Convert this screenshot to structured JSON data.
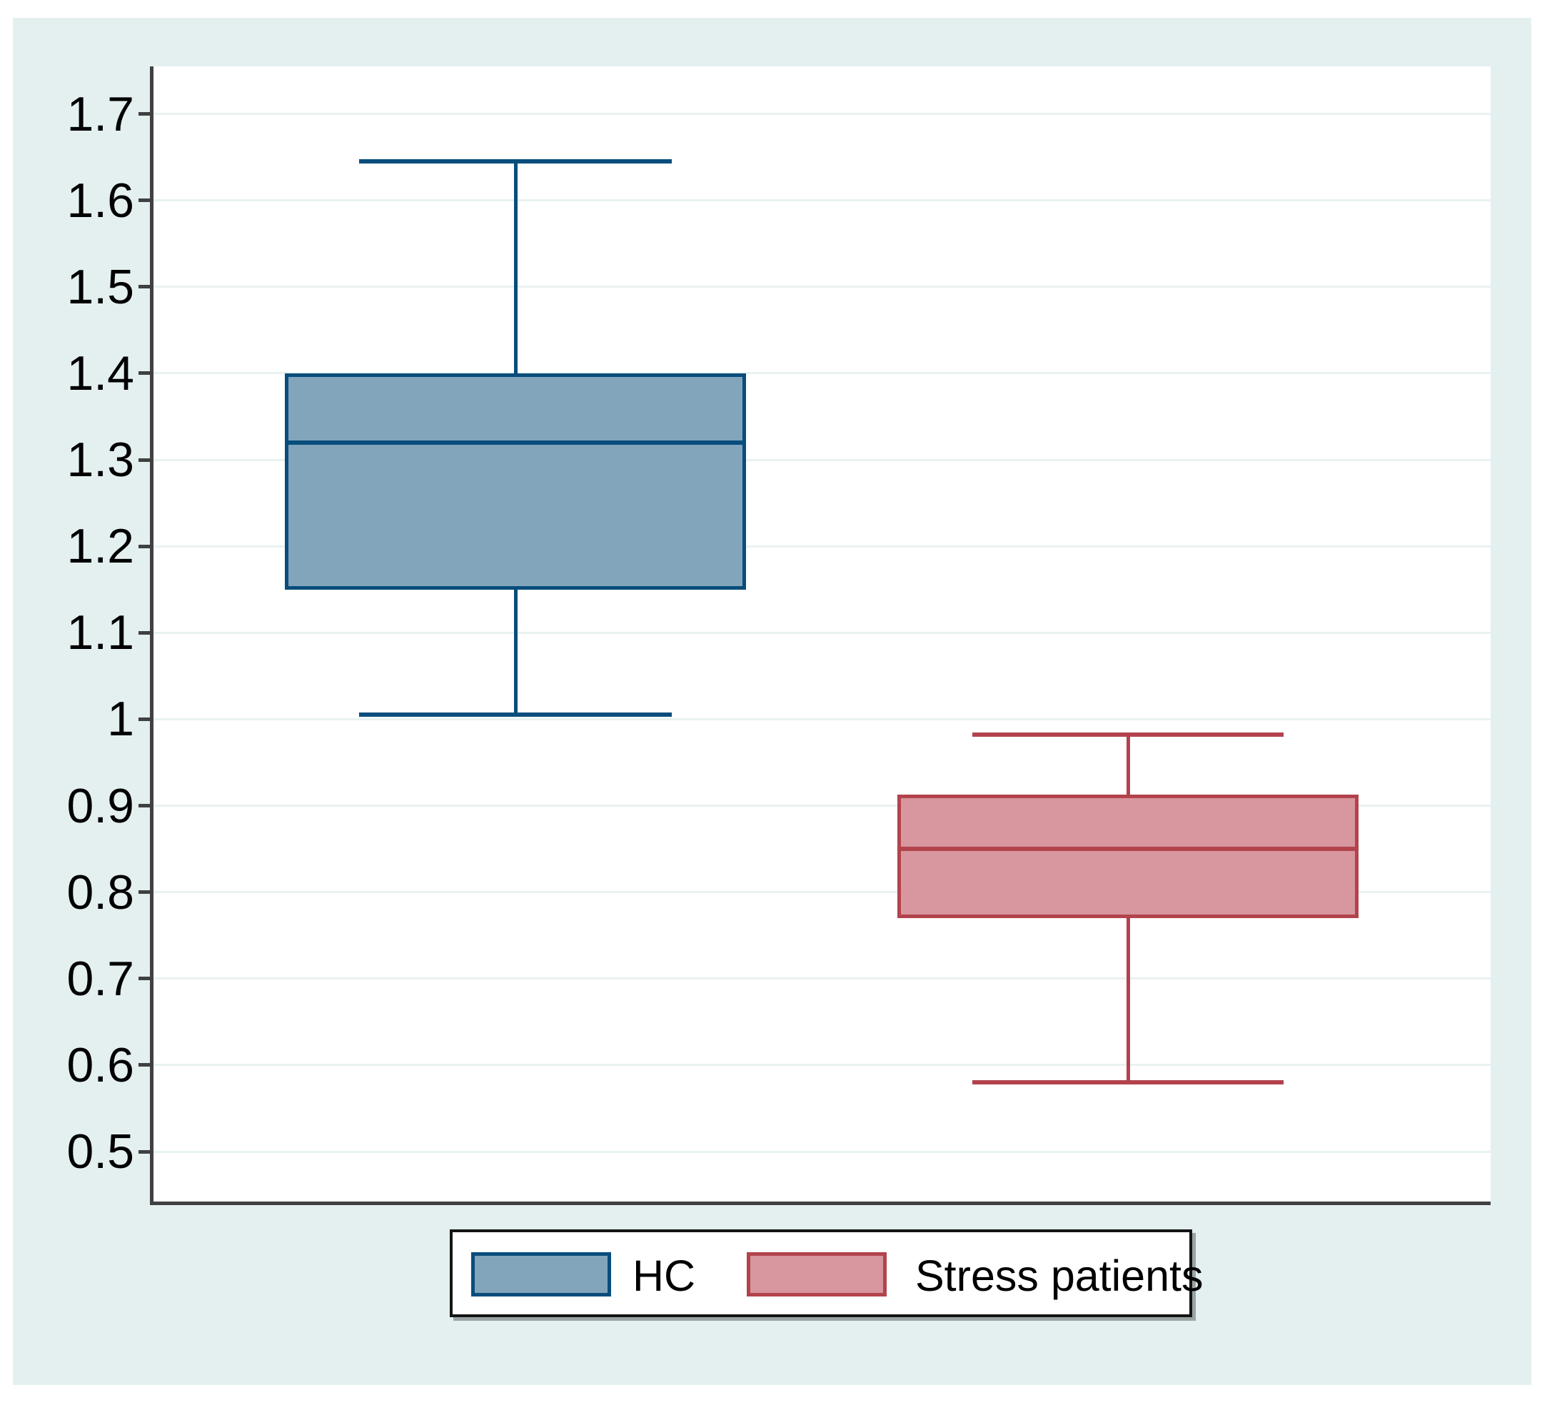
{
  "chart_data": {
    "type": "box",
    "title": "",
    "xlabel": "",
    "ylabel": "",
    "ylim": [
      0.44,
      1.755
    ],
    "grid": true,
    "legend_position": "bottom",
    "yticks": [
      {
        "value": 1.7,
        "label": "1.7"
      },
      {
        "value": 1.6,
        "label": "1.6"
      },
      {
        "value": 1.5,
        "label": "1.5"
      },
      {
        "value": 1.4,
        "label": "1.4"
      },
      {
        "value": 1.3,
        "label": "1.3"
      },
      {
        "value": 1.2,
        "label": "1.2"
      },
      {
        "value": 1.1,
        "label": "1.1"
      },
      {
        "value": 1.0,
        "label": "1"
      },
      {
        "value": 0.9,
        "label": "0.9"
      },
      {
        "value": 0.8,
        "label": "0.8"
      },
      {
        "value": 0.7,
        "label": "0.7"
      },
      {
        "value": 0.6,
        "label": "0.6"
      },
      {
        "value": 0.5,
        "label": "0.5"
      }
    ],
    "series": [
      {
        "name": "HC",
        "whisker_low": 1.005,
        "q1": 1.15,
        "median": 1.32,
        "q3": 1.4,
        "whisker_high": 1.645,
        "fill_color": "#82a5bb",
        "border_color": "#084d7c"
      },
      {
        "name": "Stress patients",
        "whisker_low": 0.58,
        "q1": 0.77,
        "median": 0.85,
        "q3": 0.913,
        "whisker_high": 0.982,
        "fill_color": "#d8969e",
        "border_color": "#b2434d"
      }
    ]
  },
  "colors": {
    "page_background": "#ffffff",
    "canvas_background": "#e4eff0",
    "plot_background": "#ffffff",
    "gridline": "#e8f2f1",
    "axis": "#404040",
    "tick_text": "#000000",
    "legend_border": "#141414",
    "legend_background": "#ffffff",
    "legend_shadow": "#9aa3a3"
  },
  "legend": {
    "items": [
      {
        "label": "HC"
      },
      {
        "label": "Stress patients"
      }
    ]
  }
}
